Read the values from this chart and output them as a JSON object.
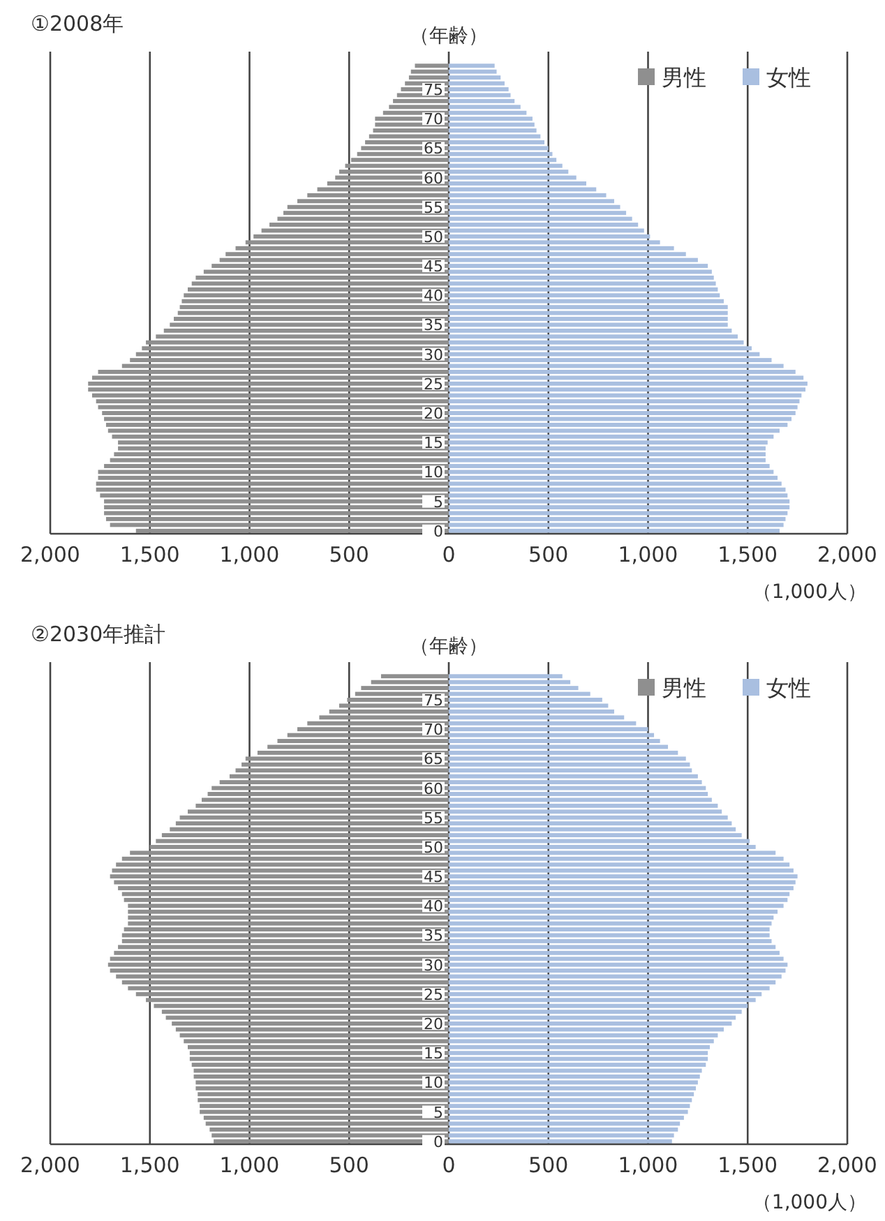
{
  "chart_data": [
    {
      "type": "bar",
      "orientation": "horizontal",
      "stacked": true,
      "title": "①2008年",
      "ylabel": "（年齢）",
      "xlabel": "（1,000人）",
      "legend": "top right",
      "grid": "x",
      "categories": [
        null,
        null,
        null,
        null,
        "75",
        null,
        null,
        null,
        null,
        "70",
        null,
        null,
        null,
        null,
        "65",
        null,
        null,
        null,
        null,
        "60",
        null,
        null,
        null,
        null,
        "55",
        null,
        null,
        null,
        null,
        "50",
        null,
        null,
        null,
        null,
        "45",
        null,
        null,
        null,
        null,
        "40",
        null,
        null,
        null,
        null,
        "35",
        null,
        null,
        null,
        null,
        "30",
        null,
        null,
        null,
        null,
        "25",
        null,
        null,
        null,
        null,
        "20",
        null,
        null,
        null,
        null,
        "15",
        null,
        null,
        null,
        null,
        "10",
        null,
        null,
        null,
        null,
        "5",
        null,
        null,
        null,
        null,
        "0"
      ],
      "xlim": [
        -2000,
        2000
      ],
      "xticks": [
        {
          "value": -2000,
          "label": "2,000"
        },
        {
          "value": -1500,
          "label": "1,500"
        },
        {
          "value": -1000,
          "label": "1,000"
        },
        {
          "value": -500,
          "label": "500"
        },
        {
          "value": 0,
          "label": "0"
        },
        {
          "value": 500,
          "label": "500"
        },
        {
          "value": 1000,
          "label": "1,000"
        },
        {
          "value": 1500,
          "label": "1,500"
        },
        {
          "value": 2000,
          "label": "2,000"
        }
      ],
      "series": [
        {
          "name": "男性",
          "color": "#8f8f8f",
          "values": [
            -170,
            -190,
            -200,
            -220,
            -240,
            -260,
            -280,
            -300,
            -330,
            -370,
            -370,
            -380,
            -400,
            -420,
            -440,
            -460,
            -490,
            -520,
            -550,
            -570,
            -610,
            -660,
            -710,
            -760,
            -810,
            -830,
            -860,
            -900,
            -940,
            -980,
            -1020,
            -1070,
            -1120,
            -1150,
            -1190,
            -1230,
            -1270,
            -1290,
            -1310,
            -1330,
            -1340,
            -1350,
            -1360,
            -1380,
            -1400,
            -1430,
            -1470,
            -1520,
            -1540,
            -1570,
            -1600,
            -1640,
            -1760,
            -1790,
            -1810,
            -1810,
            -1790,
            -1770,
            -1760,
            -1740,
            -1730,
            -1720,
            -1710,
            -1690,
            -1660,
            -1660,
            -1680,
            -1700,
            -1730,
            -1760,
            -1760,
            -1770,
            -1770,
            -1750,
            -1730,
            -1730,
            -1730,
            -1720,
            -1700,
            -1570
          ]
        },
        {
          "name": "女性",
          "color": "#a9bfe0",
          "values": [
            230,
            240,
            260,
            280,
            300,
            310,
            330,
            360,
            390,
            420,
            430,
            440,
            460,
            480,
            500,
            520,
            540,
            570,
            600,
            640,
            690,
            740,
            790,
            830,
            860,
            890,
            920,
            950,
            980,
            1010,
            1060,
            1130,
            1190,
            1250,
            1300,
            1320,
            1330,
            1340,
            1350,
            1360,
            1380,
            1400,
            1400,
            1400,
            1400,
            1420,
            1450,
            1480,
            1520,
            1560,
            1620,
            1680,
            1740,
            1780,
            1800,
            1790,
            1770,
            1760,
            1750,
            1740,
            1720,
            1700,
            1660,
            1630,
            1600,
            1590,
            1590,
            1590,
            1610,
            1630,
            1650,
            1670,
            1690,
            1700,
            1710,
            1710,
            1700,
            1690,
            1680,
            1660
          ]
        }
      ]
    },
    {
      "type": "bar",
      "orientation": "horizontal",
      "stacked": true,
      "title": "②2030年推計",
      "ylabel": "（年齢）",
      "xlabel": "（1,000人）",
      "legend": "top right",
      "grid": "x",
      "categories": [
        null,
        null,
        null,
        null,
        "75",
        null,
        null,
        null,
        null,
        "70",
        null,
        null,
        null,
        null,
        "65",
        null,
        null,
        null,
        null,
        "60",
        null,
        null,
        null,
        null,
        "55",
        null,
        null,
        null,
        null,
        "50",
        null,
        null,
        null,
        null,
        "45",
        null,
        null,
        null,
        null,
        "40",
        null,
        null,
        null,
        null,
        "35",
        null,
        null,
        null,
        null,
        "30",
        null,
        null,
        null,
        null,
        "25",
        null,
        null,
        null,
        null,
        "20",
        null,
        null,
        null,
        null,
        "15",
        null,
        null,
        null,
        null,
        "10",
        null,
        null,
        null,
        null,
        "5",
        null,
        null,
        null,
        null,
        "0"
      ],
      "xlim": [
        -2000,
        2000
      ],
      "xticks": [
        {
          "value": -2000,
          "label": "2,000"
        },
        {
          "value": -1500,
          "label": "1,500"
        },
        {
          "value": -1000,
          "label": "1,000"
        },
        {
          "value": -500,
          "label": "500"
        },
        {
          "value": 0,
          "label": "0"
        },
        {
          "value": 500,
          "label": "500"
        },
        {
          "value": 1000,
          "label": "1,000"
        },
        {
          "value": 1500,
          "label": "1,500"
        },
        {
          "value": 2000,
          "label": "2,000"
        }
      ],
      "series": [
        {
          "name": "男性",
          "color": "#8f8f8f",
          "values": [
            -340,
            -390,
            -440,
            -470,
            -510,
            -550,
            -600,
            -650,
            -710,
            -760,
            -810,
            -860,
            -910,
            -960,
            -1020,
            -1040,
            -1070,
            -1100,
            -1150,
            -1190,
            -1210,
            -1240,
            -1270,
            -1310,
            -1350,
            -1370,
            -1400,
            -1440,
            -1470,
            -1500,
            -1600,
            -1640,
            -1670,
            -1690,
            -1700,
            -1680,
            -1660,
            -1640,
            -1630,
            -1610,
            -1610,
            -1610,
            -1610,
            -1630,
            -1640,
            -1640,
            -1660,
            -1680,
            -1700,
            -1710,
            -1700,
            -1670,
            -1640,
            -1610,
            -1570,
            -1520,
            -1480,
            -1440,
            -1420,
            -1390,
            -1370,
            -1350,
            -1330,
            -1310,
            -1300,
            -1300,
            -1290,
            -1280,
            -1280,
            -1270,
            -1270,
            -1260,
            -1260,
            -1250,
            -1250,
            -1230,
            -1220,
            -1200,
            -1190,
            -1180
          ]
        },
        {
          "name": "女性",
          "color": "#a9bfe0",
          "values": [
            570,
            610,
            650,
            710,
            770,
            800,
            830,
            880,
            940,
            1000,
            1030,
            1060,
            1100,
            1150,
            1190,
            1210,
            1220,
            1250,
            1270,
            1290,
            1300,
            1320,
            1350,
            1370,
            1400,
            1420,
            1440,
            1470,
            1510,
            1540,
            1640,
            1680,
            1710,
            1730,
            1750,
            1740,
            1730,
            1710,
            1700,
            1680,
            1650,
            1630,
            1620,
            1610,
            1610,
            1620,
            1640,
            1660,
            1680,
            1700,
            1690,
            1670,
            1640,
            1610,
            1570,
            1540,
            1500,
            1470,
            1440,
            1420,
            1380,
            1350,
            1330,
            1310,
            1300,
            1300,
            1290,
            1270,
            1260,
            1250,
            1240,
            1230,
            1220,
            1210,
            1200,
            1180,
            1160,
            1150,
            1130,
            1120
          ]
        }
      ]
    }
  ]
}
